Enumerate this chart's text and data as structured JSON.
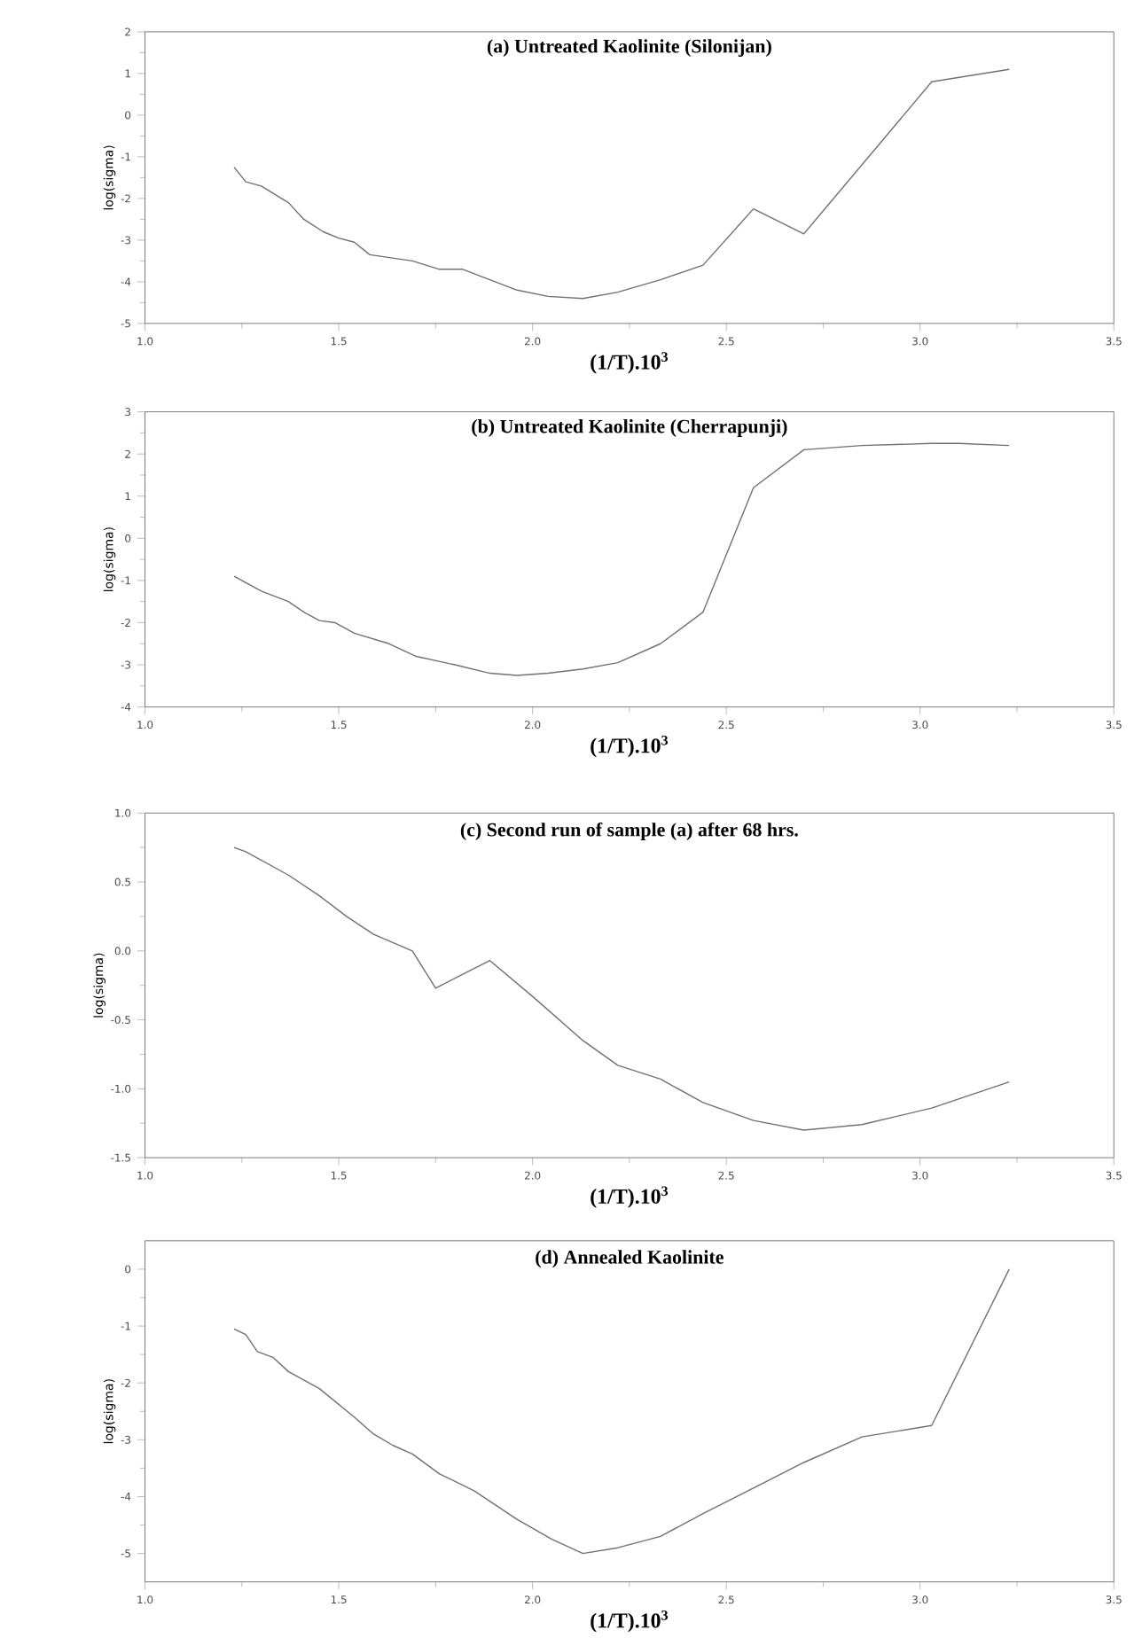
{
  "chart_data": [
    {
      "type": "line",
      "title": "(a) Untreated Kaolinite (Silonijan)",
      "xlabel": "(1/T).10$^{3}$",
      "ylabel": "log(sigma)",
      "x": [
        1.23,
        1.26,
        1.3,
        1.37,
        1.41,
        1.46,
        1.5,
        1.54,
        1.58,
        1.69,
        1.76,
        1.82,
        1.96,
        2.04,
        2.13,
        2.22,
        2.33,
        2.44,
        2.57,
        2.7,
        3.03,
        3.23
      ],
      "series": [
        {
          "color": "#707070",
          "values": [
            -1.25,
            -1.6,
            -1.7,
            -2.1,
            -2.5,
            -2.8,
            -2.95,
            -3.05,
            -3.35,
            -3.5,
            -3.7,
            -3.7,
            -4.2,
            -4.35,
            -4.4,
            -4.25,
            -3.95,
            -3.6,
            -2.25,
            -2.85,
            0.8,
            1.1
          ]
        }
      ],
      "xlim": [
        1.0,
        3.5
      ],
      "xticks": [
        {
          "value": 1.0,
          "label": "1.0"
        },
        {
          "value": 1.5,
          "label": "1.5"
        },
        {
          "value": 2.0,
          "label": "2.0"
        },
        {
          "value": 2.5,
          "label": "2.5"
        },
        {
          "value": 3.0,
          "label": "3.0"
        },
        {
          "value": 3.5,
          "label": "3.5"
        }
      ],
      "ylim": [
        -5,
        2
      ],
      "yticks": [
        -5,
        -4,
        -3,
        -2,
        -1,
        0,
        1,
        2
      ]
    },
    {
      "type": "line",
      "title": "(b) Untreated Kaolinite (Cherrapunji)",
      "xlabel": "(1/T).10$^{3}$",
      "ylabel": "log(sigma)",
      "x": [
        1.23,
        1.3,
        1.37,
        1.41,
        1.45,
        1.49,
        1.54,
        1.63,
        1.7,
        1.8,
        1.89,
        1.96,
        2.04,
        2.13,
        2.22,
        2.33,
        2.44,
        2.57,
        2.7,
        2.85,
        3.03,
        3.1,
        3.23
      ],
      "series": [
        {
          "color": "#707070",
          "values": [
            -0.9,
            -1.25,
            -1.5,
            -1.75,
            -1.95,
            -2.0,
            -2.25,
            -2.5,
            -2.8,
            -3.0,
            -3.2,
            -3.25,
            -3.2,
            -3.1,
            -2.95,
            -2.5,
            -1.75,
            1.2,
            2.1,
            2.2,
            2.25,
            2.25,
            2.2
          ]
        }
      ],
      "xlim": [
        1.0,
        3.5
      ],
      "xticks": [
        {
          "value": 1.0,
          "label": "1.0"
        },
        {
          "value": 1.5,
          "label": "1.5"
        },
        {
          "value": 2.0,
          "label": "2.0"
        },
        {
          "value": 2.5,
          "label": "2.5"
        },
        {
          "value": 3.0,
          "label": "3.0"
        },
        {
          "value": 3.5,
          "label": "3.5"
        }
      ],
      "ylim": [
        -4,
        3
      ],
      "yticks": [
        -4,
        -3,
        -2,
        -1,
        0,
        1,
        2,
        3
      ]
    },
    {
      "type": "line",
      "title": "(c) Second run of sample (a) after 68 hrs.",
      "xlabel": "(1/T).10$^{3}$",
      "ylabel": "log(sigma)",
      "x": [
        1.23,
        1.26,
        1.37,
        1.45,
        1.52,
        1.59,
        1.69,
        1.75,
        1.89,
        2.0,
        2.13,
        2.22,
        2.33,
        2.44,
        2.57,
        2.7,
        2.85,
        3.03,
        3.23
      ],
      "series": [
        {
          "color": "#707070",
          "values": [
            0.75,
            0.72,
            0.55,
            0.4,
            0.25,
            0.12,
            0.0,
            -0.27,
            -0.07,
            -0.33,
            -0.65,
            -0.83,
            -0.93,
            -1.1,
            -1.23,
            -1.3,
            -1.26,
            -1.14,
            -0.95
          ]
        }
      ],
      "xlim": [
        1.0,
        3.5
      ],
      "xticks": [
        {
          "value": 1.0,
          "label": "1.0"
        },
        {
          "value": 1.5,
          "label": "1.5"
        },
        {
          "value": 2.0,
          "label": "2.0"
        },
        {
          "value": 2.5,
          "label": "2.5"
        },
        {
          "value": 3.0,
          "label": "3.0"
        },
        {
          "value": 3.5,
          "label": "3.5"
        }
      ],
      "ylim": [
        -1.5,
        1.0
      ],
      "yticks": [
        -1.5,
        {
          "value": -1.0,
          "label": "-1.0"
        },
        -0.5,
        {
          "value": 0.0,
          "label": "0.0"
        },
        0.5,
        {
          "value": 1.0,
          "label": "1.0"
        }
      ]
    },
    {
      "type": "line",
      "title": "(d) Annealed Kaolinite",
      "xlabel": "(1/T).10$^{3}$",
      "ylabel": "log(sigma)",
      "x": [
        1.23,
        1.26,
        1.29,
        1.33,
        1.37,
        1.45,
        1.54,
        1.59,
        1.64,
        1.69,
        1.76,
        1.85,
        1.96,
        2.05,
        2.13,
        2.22,
        2.33,
        2.44,
        2.57,
        2.7,
        2.85,
        3.03,
        3.23
      ],
      "series": [
        {
          "color": "#707070",
          "values": [
            -1.05,
            -1.15,
            -1.45,
            -1.55,
            -1.8,
            -2.1,
            -2.6,
            -2.9,
            -3.1,
            -3.25,
            -3.6,
            -3.9,
            -4.4,
            -4.75,
            -5.0,
            -4.9,
            -4.7,
            -4.3,
            -3.85,
            -3.4,
            -2.95,
            -2.75,
            0.0
          ]
        }
      ],
      "xlim": [
        1.0,
        3.5
      ],
      "xticks": [
        {
          "value": 1.0,
          "label": "1.0"
        },
        {
          "value": 1.5,
          "label": "1.5"
        },
        {
          "value": 2.0,
          "label": "2.0"
        },
        {
          "value": 2.5,
          "label": "2.5"
        },
        {
          "value": 3.0,
          "label": "3.0"
        },
        {
          "value": 3.5,
          "label": "3.5"
        }
      ],
      "ylim": [
        -5.5,
        0.5
      ],
      "yticks": [
        -5,
        -4,
        -3,
        -2,
        -1,
        0
      ]
    }
  ]
}
